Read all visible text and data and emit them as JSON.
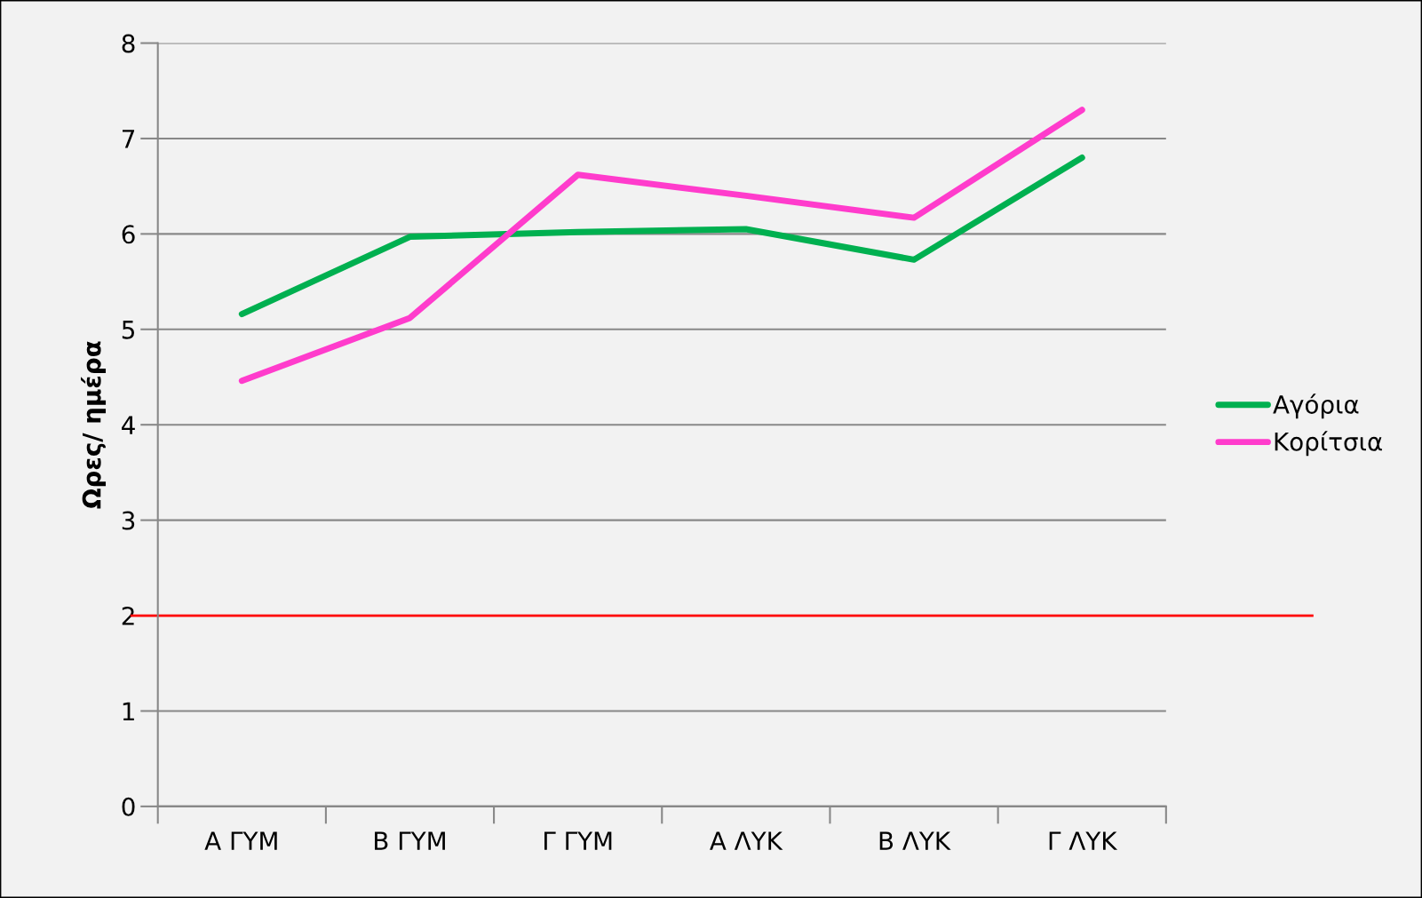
{
  "chart_data": {
    "type": "line",
    "ylabel": "Ωρες/ ημέρα",
    "categories": [
      "Α ΓΥΜ",
      "Β ΓΥΜ",
      "Γ ΓΥΜ",
      "Α ΛΥΚ",
      "Β ΛΥΚ",
      "Γ ΛΥΚ"
    ],
    "series": [
      {
        "name": "Αγόρια",
        "color": "#00b050",
        "values": [
          5.16,
          5.97,
          6.02,
          6.05,
          5.73,
          6.8
        ]
      },
      {
        "name": "Κορίτσια",
        "color": "#ff3ccc",
        "values": [
          4.46,
          5.12,
          6.62,
          6.4,
          6.17,
          7.3
        ]
      }
    ],
    "ylim": [
      0,
      8
    ],
    "yticks": [
      0,
      1,
      2,
      3,
      4,
      5,
      6,
      7,
      8
    ],
    "ref_lines": [
      {
        "axis": "y",
        "value": 2,
        "color": "#ff0000"
      }
    ],
    "grid": "y",
    "legend": "right",
    "marker": "none",
    "line_style": "solid"
  }
}
